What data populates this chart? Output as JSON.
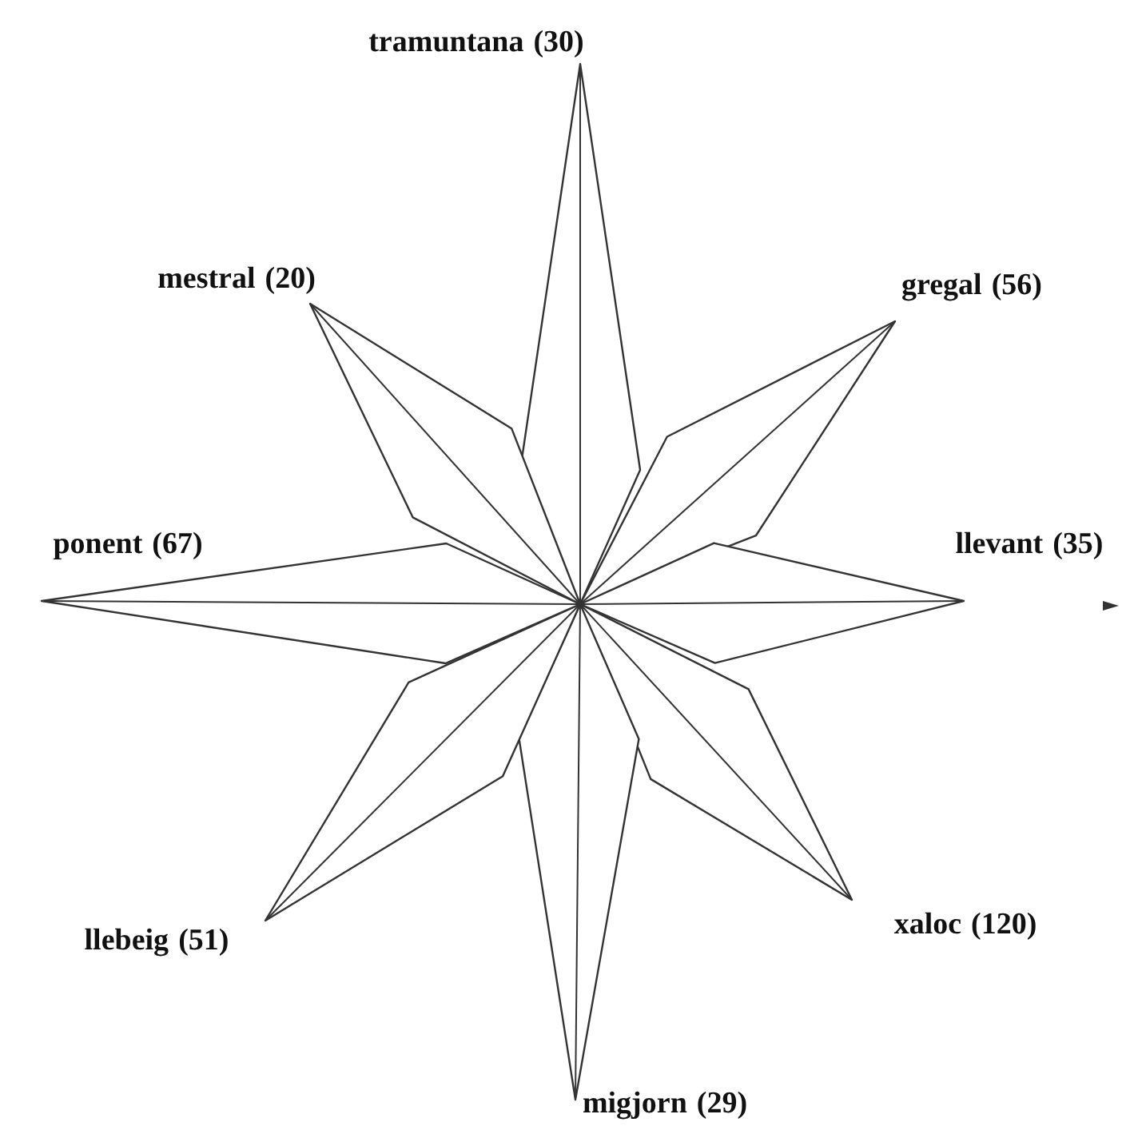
{
  "chart_data": {
    "type": "other",
    "categories": [
      "tramuntana",
      "gregal",
      "llevant",
      "xaloc",
      "migjorn",
      "llebeig",
      "ponent",
      "mestral"
    ],
    "values": [
      30,
      56,
      35,
      120,
      29,
      51,
      67,
      20
    ],
    "value_labels": [
      "(30)",
      "(56)",
      "(35)",
      "(120)",
      "(29)",
      "(51)",
      "(67)",
      "(20)"
    ]
  }
}
